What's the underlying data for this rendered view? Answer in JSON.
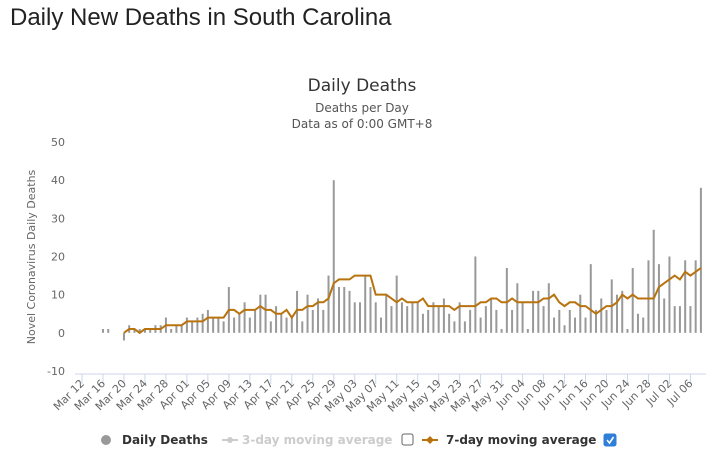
{
  "page_title": "Daily New Deaths in South Carolina",
  "chart_data": {
    "type": "bar",
    "title": "Daily Deaths",
    "subtitle": "Deaths per Day",
    "note": "Data as of 0:00 GMT+8",
    "y_label": "Novel Coronavirus Daily Deaths",
    "categories": [
      "Mar 12",
      null,
      null,
      null,
      "Mar 16",
      null,
      null,
      null,
      "Mar 20",
      null,
      null,
      null,
      "Mar 24",
      null,
      null,
      null,
      "Mar 28",
      null,
      null,
      null,
      "Apr 01",
      null,
      null,
      null,
      "Apr 05",
      null,
      null,
      null,
      "Apr 09",
      null,
      null,
      null,
      "Apr 13",
      null,
      null,
      null,
      "Apr 17",
      null,
      null,
      null,
      "Apr 21",
      null,
      null,
      null,
      "Apr 25",
      null,
      null,
      null,
      "Apr 29",
      null,
      null,
      null,
      "May 03",
      null,
      null,
      null,
      "May 07",
      null,
      null,
      null,
      "May 11",
      null,
      null,
      null,
      "May 15",
      null,
      null,
      null,
      "May 19",
      null,
      null,
      null,
      "May 23",
      null,
      null,
      null,
      "May 27",
      null,
      null,
      null,
      "May 31",
      null,
      null,
      null,
      "Jun 04",
      null,
      null,
      null,
      "Jun 08",
      null,
      null,
      null,
      "Jun 12",
      null,
      null,
      null,
      "Jun 16",
      null,
      null,
      null,
      "Jun 20",
      null,
      null,
      null,
      "Jun 24",
      null,
      null,
      null,
      "Jun 28",
      null,
      null,
      null,
      "Jul 02",
      null,
      null,
      null,
      "Jul 06",
      null,
      null
    ],
    "series": [
      {
        "name": "Daily Deaths",
        "color": "#999999",
        "type": "bar",
        "values": [
          0,
          0,
          0,
          0,
          1,
          1,
          0,
          0,
          -2,
          2,
          1,
          1,
          1,
          1,
          2,
          2,
          4,
          1,
          2,
          2,
          4,
          3,
          4,
          5,
          6,
          4,
          4,
          3,
          12,
          4,
          5,
          8,
          4,
          6,
          10,
          10,
          3,
          7,
          5,
          4,
          4,
          11,
          3,
          10,
          6,
          9,
          6,
          15,
          40,
          12,
          12,
          11,
          8,
          8,
          15,
          12,
          8,
          4,
          10,
          7,
          15,
          8,
          7,
          8,
          8,
          5,
          6,
          8,
          7,
          9,
          5,
          3,
          8,
          3,
          6,
          20,
          4,
          7,
          9,
          6,
          1,
          17,
          6,
          13,
          8,
          1,
          11,
          11,
          7,
          13,
          4,
          6,
          2,
          6,
          4,
          10,
          4,
          18,
          6,
          9,
          6,
          14,
          10,
          11,
          1,
          17,
          5,
          4,
          19,
          27,
          18,
          9,
          20,
          7,
          7,
          19,
          7,
          19,
          38
        ]
      },
      {
        "name": "7-day moving average",
        "color": "#b8730f",
        "type": "line",
        "values": [
          null,
          null,
          null,
          null,
          null,
          null,
          null,
          null,
          0,
          1,
          1,
          0,
          1,
          1,
          1,
          1,
          2,
          2,
          2,
          2,
          3,
          3,
          3,
          3,
          4,
          4,
          4,
          4,
          6,
          6,
          5,
          6,
          6,
          6,
          7,
          6,
          6,
          5,
          5,
          6,
          4,
          6,
          6,
          7,
          7,
          8,
          8,
          9,
          13,
          14,
          14,
          14,
          15,
          15,
          15,
          15,
          10,
          10,
          10,
          9,
          8,
          9,
          8,
          8,
          8,
          9,
          7,
          7,
          7,
          7,
          7,
          6,
          7,
          7,
          7,
          7,
          8,
          8,
          9,
          9,
          8,
          8,
          9,
          8,
          8,
          8,
          8,
          8,
          9,
          9,
          10,
          8,
          7,
          8,
          8,
          7,
          7,
          6,
          5,
          6,
          7,
          7,
          8,
          10,
          9,
          10,
          9,
          9,
          9,
          9,
          12,
          13,
          14,
          15,
          14,
          16,
          15,
          16,
          17
        ]
      }
    ],
    "hidden_series": [
      {
        "name": "3-day moving average",
        "color": "#cccccc"
      }
    ],
    "ylim": [
      -10,
      50
    ],
    "yticks": [
      -10,
      0,
      10,
      20,
      30,
      40,
      50
    ],
    "grid": false
  }
}
